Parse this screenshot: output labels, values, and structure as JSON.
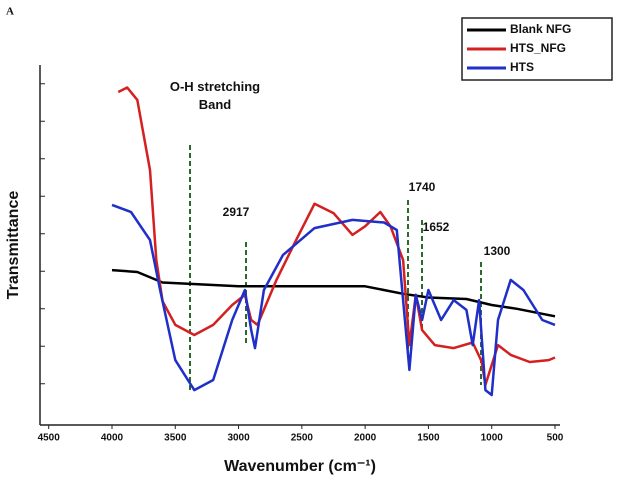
{
  "chart_data": {
    "type": "line",
    "panel_label": "A",
    "xlabel": "Wavenumber (cm⁻¹)",
    "ylabel": "Transmittance",
    "xlim": [
      4500,
      500
    ],
    "xticks": [
      4500,
      4000,
      3500,
      3000,
      2500,
      2000,
      1500,
      1000,
      500
    ],
    "ylim": [
      4,
      100
    ],
    "yticks": [
      15,
      25,
      35,
      45,
      55,
      65,
      75,
      85,
      95
    ],
    "legend": "upper right",
    "annotations": [
      "O-H stretching Band",
      "2917",
      "1740",
      "1652",
      "1300"
    ],
    "series": [
      {
        "name": "Blank NFG",
        "color": "#000000",
        "x": [
          4000,
          3800,
          3600,
          3000,
          2500,
          2000,
          1700,
          1500,
          1200,
          1000,
          800,
          500
        ],
        "values": [
          45.3,
          44.8,
          42,
          41,
          41,
          41,
          39,
          38,
          37.6,
          36,
          35,
          33
        ]
      },
      {
        "name": "HTS_NFG",
        "color": "#d42020",
        "x": [
          3950,
          3880,
          3800,
          3700,
          3650,
          3600,
          3500,
          3350,
          3200,
          3050,
          2950,
          2900,
          2850,
          2700,
          2550,
          2400,
          2250,
          2100,
          2000,
          1880,
          1800,
          1700,
          1650,
          1600,
          1550,
          1450,
          1300,
          1150,
          1080,
          1050,
          950,
          850,
          700,
          550,
          500
        ],
        "values": [
          92.8,
          94,
          90.7,
          72,
          48,
          37,
          30.7,
          28,
          30.7,
          36,
          38.7,
          32,
          30.7,
          42.7,
          53,
          63,
          60.5,
          54.7,
          57,
          60.8,
          57,
          48,
          25.3,
          38.7,
          29.3,
          25.3,
          24.5,
          26,
          21,
          14.7,
          25.3,
          22.7,
          20.8,
          21.3,
          22
        ]
      },
      {
        "name": "HTS",
        "color": "#1f2fc8",
        "x": [
          4000,
          3850,
          3700,
          3620,
          3500,
          3350,
          3200,
          3050,
          2950,
          2900,
          2870,
          2800,
          2650,
          2400,
          2100,
          1850,
          1750,
          1700,
          1650,
          1600,
          1550,
          1500,
          1400,
          1300,
          1200,
          1150,
          1100,
          1050,
          1000,
          950,
          850,
          750,
          600,
          500
        ],
        "values": [
          62.7,
          60.8,
          53.3,
          40,
          21.3,
          13.3,
          16,
          32,
          40,
          29.3,
          24.5,
          40,
          49.3,
          56.5,
          58.7,
          58,
          56,
          37.3,
          18.7,
          38.7,
          32,
          40,
          32,
          37.3,
          34.7,
          25.3,
          37.3,
          13.3,
          12,
          32,
          42.7,
          40,
          32,
          30.7
        ]
      }
    ]
  }
}
